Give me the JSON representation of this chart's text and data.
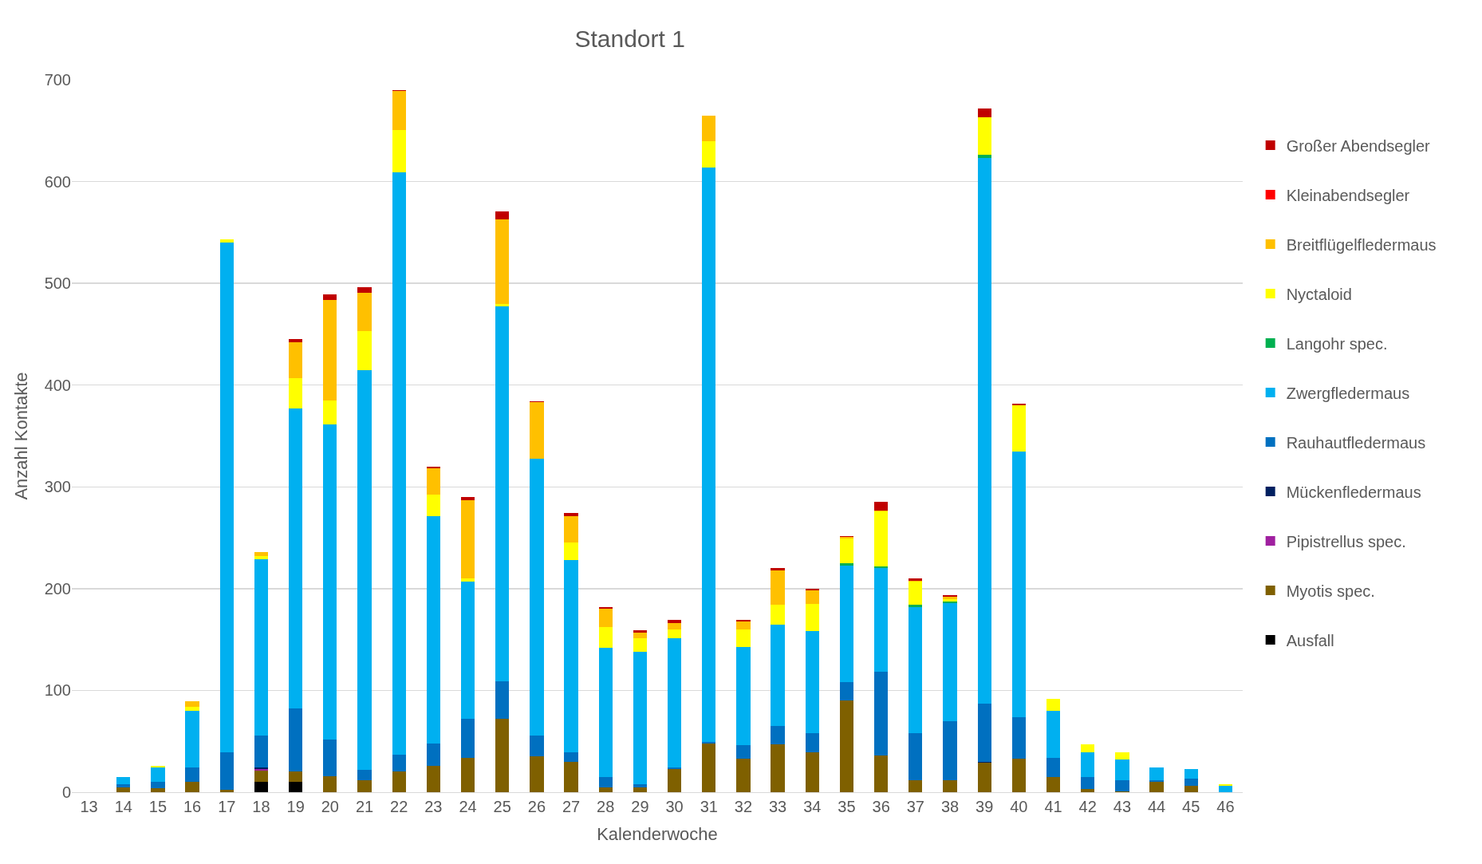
{
  "chart_data": {
    "type": "bar",
    "stacked": true,
    "title": "Standort 1",
    "xlabel": "Kalenderwoche",
    "ylabel": "Anzahl Kontakte",
    "categories": [
      "13",
      "14",
      "15",
      "16",
      "17",
      "18",
      "19",
      "20",
      "21",
      "22",
      "23",
      "24",
      "25",
      "26",
      "27",
      "28",
      "29",
      "30",
      "31",
      "32",
      "33",
      "34",
      "35",
      "36",
      "37",
      "38",
      "39",
      "40",
      "41",
      "42",
      "43",
      "44",
      "45",
      "46"
    ],
    "ylim": [
      0,
      700
    ],
    "yticks": [
      0,
      100,
      200,
      300,
      400,
      500,
      600,
      700
    ],
    "grid": "y",
    "legend": "right",
    "series": [
      {
        "name": "Ausfall",
        "color": "#000000",
        "values": [
          0,
          0,
          0,
          0,
          0,
          10,
          10,
          0,
          0,
          0,
          0,
          0,
          0,
          0,
          0,
          0,
          0,
          0,
          0,
          0,
          0,
          0,
          0,
          0,
          0,
          0,
          0,
          0,
          0,
          0,
          0,
          0,
          0,
          0
        ]
      },
      {
        "name": "Myotis spec.",
        "color": "#7f6000",
        "values": [
          0,
          5,
          4,
          10,
          2,
          11,
          10,
          16,
          12,
          20,
          26,
          34,
          72,
          35,
          30,
          5,
          5,
          23,
          48,
          33,
          47,
          39,
          90,
          36,
          12,
          12,
          29,
          33,
          15,
          3,
          1,
          10,
          6,
          0
        ]
      },
      {
        "name": "Pipistrellus spec.",
        "color": "#a020a0",
        "values": [
          0,
          0,
          0,
          0,
          0,
          2,
          0,
          0,
          0,
          0,
          0,
          0,
          0,
          0,
          0,
          0,
          0,
          0,
          0,
          0,
          0,
          0,
          0,
          0,
          0,
          0,
          0,
          0,
          0,
          0,
          0,
          0,
          0,
          0
        ]
      },
      {
        "name": "Mückenfledermaus",
        "color": "#002060",
        "values": [
          0,
          0,
          0,
          0,
          0,
          1,
          0,
          0,
          0,
          0,
          0,
          0,
          0,
          0,
          0,
          0,
          0,
          0,
          0,
          0,
          0,
          0,
          0,
          0,
          0,
          0,
          1,
          0,
          0,
          0,
          0,
          0,
          0,
          0
        ]
      },
      {
        "name": "Rauhautfledermaus",
        "color": "#0070c0",
        "values": [
          0,
          3,
          6,
          14,
          37,
          32,
          62,
          36,
          10,
          17,
          22,
          38,
          37,
          21,
          9,
          10,
          3,
          1,
          1,
          13,
          18,
          19,
          18,
          82,
          46,
          58,
          57,
          41,
          19,
          12,
          11,
          2,
          7,
          0
        ]
      },
      {
        "name": "Zwergfledermaus",
        "color": "#00b0f0",
        "values": [
          0,
          7,
          14,
          56,
          501,
          173,
          295,
          309,
          393,
          572,
          223,
          135,
          368,
          272,
          189,
          127,
          130,
          127,
          565,
          97,
          100,
          100,
          115,
          102,
          124,
          116,
          536,
          261,
          46,
          24,
          20,
          12,
          10,
          6
        ]
      },
      {
        "name": "Langohr spec.",
        "color": "#00b050",
        "values": [
          0,
          0,
          0,
          0,
          0,
          0,
          0,
          0,
          0,
          0,
          0,
          0,
          0,
          0,
          0,
          0,
          0,
          0,
          0,
          0,
          0,
          0,
          2,
          2,
          2,
          1,
          3,
          0,
          0,
          0,
          0,
          0,
          0,
          0
        ]
      },
      {
        "name": "Nyctaloid",
        "color": "#ffff00",
        "values": [
          0,
          0,
          2,
          4,
          3,
          3,
          30,
          24,
          38,
          42,
          21,
          3,
          3,
          0,
          17,
          20,
          13,
          9,
          26,
          17,
          19,
          27,
          24,
          54,
          23,
          3,
          37,
          45,
          12,
          8,
          7,
          0,
          0,
          2
        ]
      },
      {
        "name": "Breitflügelfledermaus",
        "color": "#ffc000",
        "values": [
          0,
          0,
          0,
          5,
          0,
          4,
          35,
          99,
          38,
          38,
          26,
          77,
          83,
          55,
          26,
          18,
          6,
          6,
          25,
          8,
          34,
          13,
          2,
          1,
          1,
          2,
          0,
          0,
          0,
          0,
          0,
          0,
          0,
          0
        ]
      },
      {
        "name": "Kleinabendsegler",
        "color": "#ff0000",
        "values": [
          0,
          0,
          0,
          0,
          0,
          0,
          0,
          0,
          0,
          0,
          0,
          0,
          0,
          0,
          0,
          0,
          0,
          0,
          0,
          0,
          0,
          0,
          0,
          0,
          0,
          0,
          0,
          0,
          0,
          0,
          0,
          0,
          0,
          0
        ]
      },
      {
        "name": "Großer Abendsegler",
        "color": "#c00000",
        "values": [
          0,
          0,
          0,
          0,
          0,
          0,
          3,
          5,
          5,
          1,
          2,
          3,
          8,
          1,
          3,
          2,
          2,
          3,
          0,
          1,
          2,
          2,
          1,
          8,
          2,
          2,
          9,
          2,
          0,
          0,
          0,
          0,
          0,
          0
        ]
      }
    ]
  }
}
